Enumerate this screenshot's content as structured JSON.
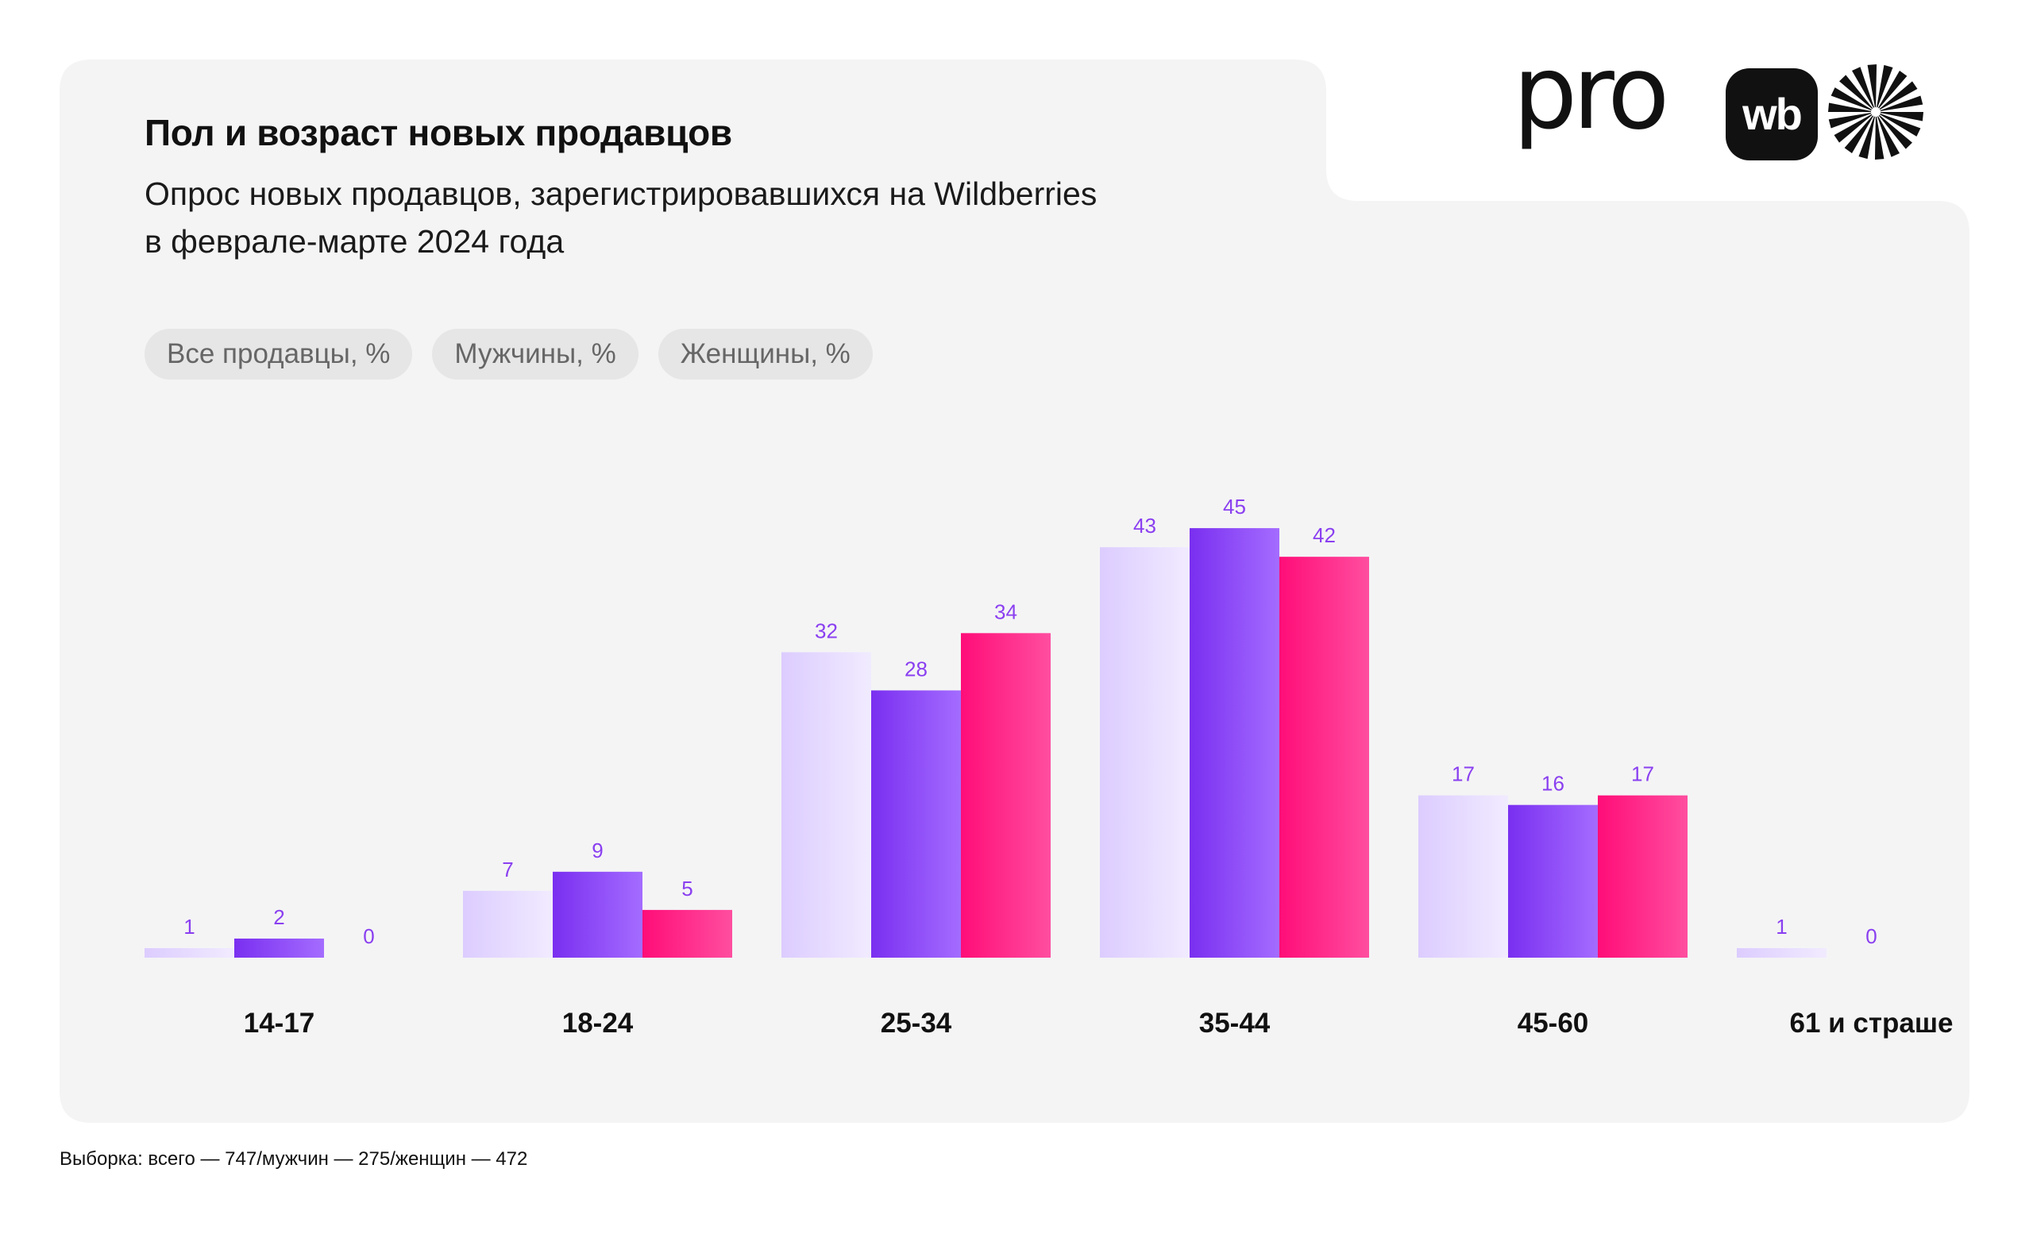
{
  "header": {
    "title": "Пол и возраст новых продавцов",
    "subtitle_line1": "Опрос новых продавцов, зарегистрировавшихся на Wildberries",
    "subtitle_line2": "в феврале-марте 2024 года"
  },
  "logo": {
    "text_pro": "pro",
    "text_badge": "wb",
    "icon": "sunburst-icon"
  },
  "legend": [
    {
      "label": "Все продавцы, %",
      "series": 0
    },
    {
      "label": "Мужчины, %",
      "series": 1
    },
    {
      "label": "Женщины, %",
      "series": 2
    }
  ],
  "colors": {
    "card_bg": "#f4f4f5",
    "all_start": "#dcccff",
    "all_end": "#f1ebff",
    "men_start": "#7a2ff0",
    "men_end": "#a46cff",
    "women_start": "#ff0d78",
    "women_end": "#ff4ea0",
    "value_label": "#8a3ff0"
  },
  "chart_data": {
    "type": "bar",
    "categories": [
      "14-17",
      "18-24",
      "25-34",
      "35-44",
      "45-60",
      "61 и страше"
    ],
    "series": [
      {
        "name": "Все продавцы, %",
        "values": [
          1,
          7,
          32,
          43,
          17,
          1
        ]
      },
      {
        "name": "Мужчины, %",
        "values": [
          2,
          9,
          28,
          45,
          16,
          0
        ]
      },
      {
        "name": "Женщины, %",
        "values": [
          0,
          5,
          34,
          42,
          17,
          null
        ]
      }
    ],
    "title": "Пол и возраст новых продавцов",
    "xlabel": "",
    "ylabel": "",
    "ylim": [
      0,
      45
    ],
    "grid": false,
    "legend_position": "top-left"
  },
  "footnote": "Выборка: всего — 747/мужчин — 275/женщин — 472"
}
